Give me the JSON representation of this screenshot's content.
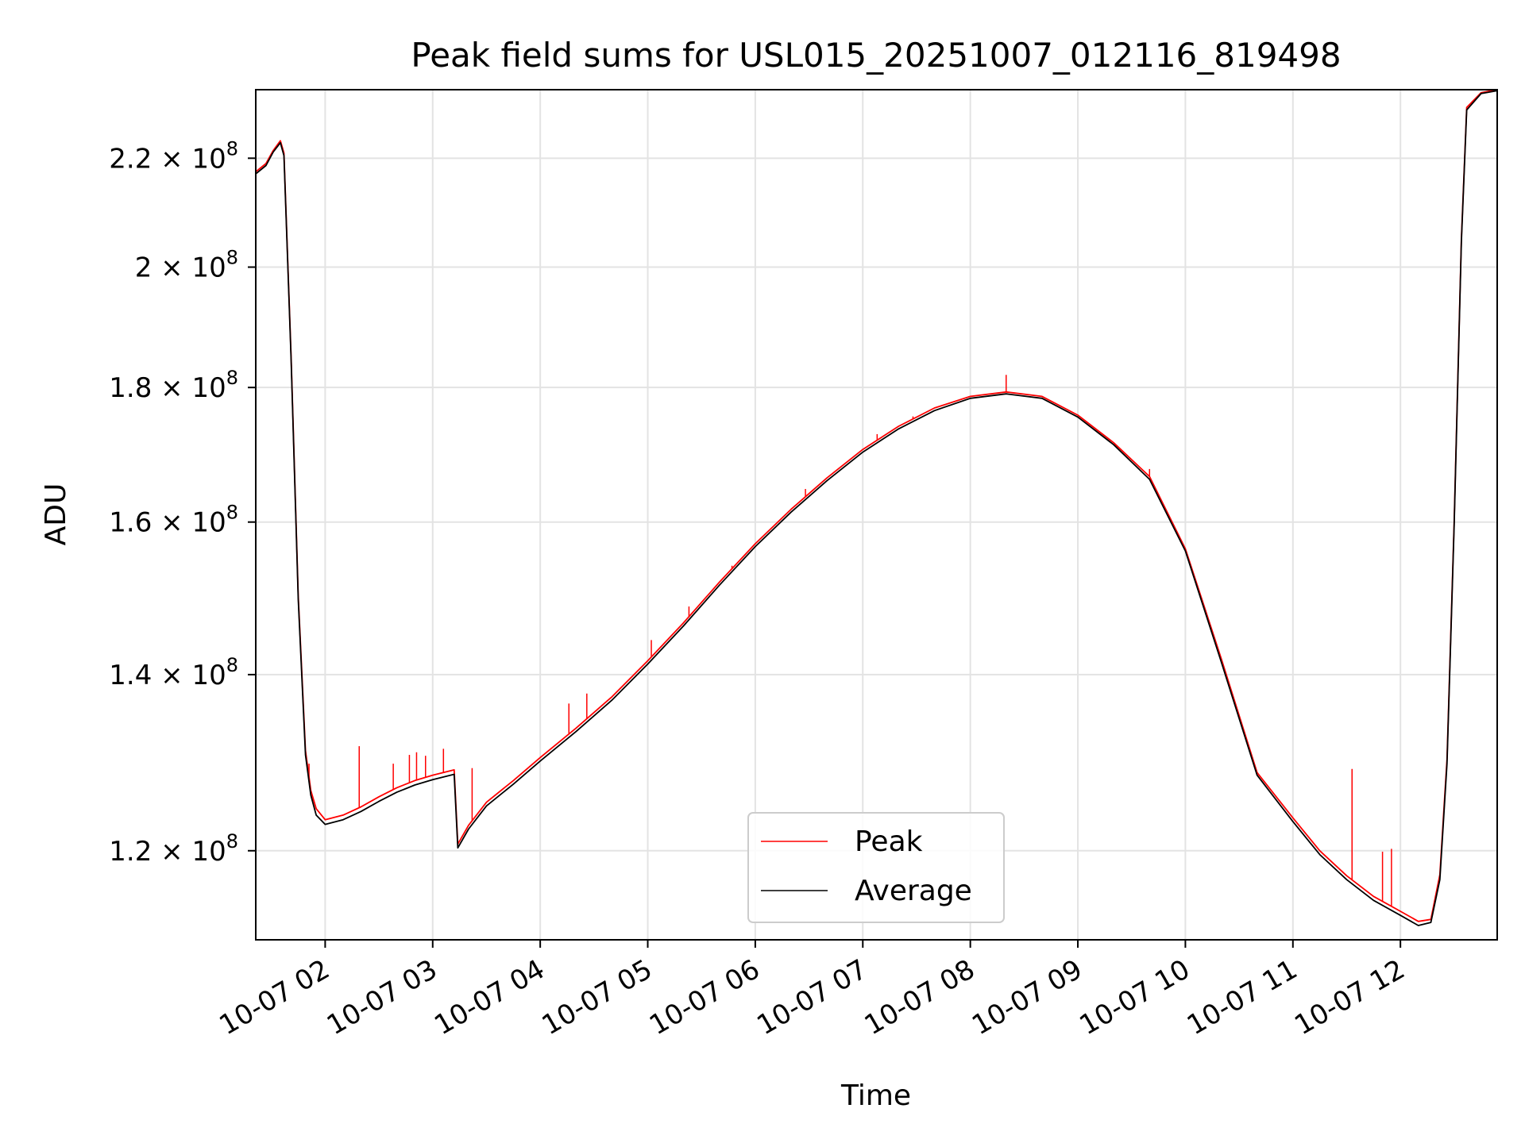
{
  "chart_data": {
    "type": "line",
    "title": "Peak field sums for USL015_20251007_012116_819498",
    "xlabel": "Time",
    "ylabel": "ADU",
    "x_axis_type": "time",
    "xlim": [
      "2025-10-07T01:21:16",
      "2025-10-07T12:54:00"
    ],
    "ylim": [
      111000000,
      233600000
    ],
    "yscale": "log",
    "grid": true,
    "legend_position": "lower-center",
    "x_ticks": [
      {
        "value": "2025-10-07T02:00:00",
        "label": "10-07 02"
      },
      {
        "value": "2025-10-07T03:00:00",
        "label": "10-07 03"
      },
      {
        "value": "2025-10-07T04:00:00",
        "label": "10-07 04"
      },
      {
        "value": "2025-10-07T05:00:00",
        "label": "10-07 05"
      },
      {
        "value": "2025-10-07T06:00:00",
        "label": "10-07 06"
      },
      {
        "value": "2025-10-07T07:00:00",
        "label": "10-07 07"
      },
      {
        "value": "2025-10-07T08:00:00",
        "label": "10-07 08"
      },
      {
        "value": "2025-10-07T09:00:00",
        "label": "10-07 09"
      },
      {
        "value": "2025-10-07T10:00:00",
        "label": "10-07 10"
      },
      {
        "value": "2025-10-07T11:00:00",
        "label": "10-07 11"
      },
      {
        "value": "2025-10-07T12:00:00",
        "label": "10-07 12"
      }
    ],
    "y_ticks": [
      {
        "value": 120000000,
        "mantissa": "1.2",
        "exponent": "8"
      },
      {
        "value": 140000000,
        "mantissa": "1.4",
        "exponent": "8"
      },
      {
        "value": 160000000,
        "mantissa": "1.6",
        "exponent": "8"
      },
      {
        "value": 180000000,
        "mantissa": "1.8",
        "exponent": "8"
      },
      {
        "value": 200000000,
        "mantissa": "2",
        "exponent": "8"
      },
      {
        "value": 220000000,
        "mantissa": "2.2",
        "exponent": "8"
      }
    ],
    "series": [
      {
        "name": "Peak",
        "color": "#ff0000",
        "points": [
          [
            "2025-10-07T01:21:16",
            217400000
          ],
          [
            "2025-10-07T01:27:00",
            219000000
          ],
          [
            "2025-10-07T01:31:00",
            221500000
          ],
          [
            "2025-10-07T01:35:00",
            223400000
          ],
          [
            "2025-10-07T01:37:00",
            221000000
          ],
          [
            "2025-10-07T01:41:00",
            185000000
          ],
          [
            "2025-10-07T01:45:00",
            150000000
          ],
          [
            "2025-10-07T01:49:00",
            131000000
          ],
          [
            "2025-10-07T01:52:00",
            126500000
          ],
          [
            "2025-10-07T01:55:00",
            124500000
          ],
          [
            "2025-10-07T02:00:00",
            123300000
          ],
          [
            "2025-10-07T02:10:00",
            123800000
          ],
          [
            "2025-10-07T02:20:00",
            124700000
          ],
          [
            "2025-10-07T02:30:00",
            125800000
          ],
          [
            "2025-10-07T02:40:00",
            126800000
          ],
          [
            "2025-10-07T02:50:00",
            127600000
          ],
          [
            "2025-10-07T03:00:00",
            128200000
          ],
          [
            "2025-10-07T03:12:00",
            128800000
          ],
          [
            "2025-10-07T03:14:00",
            120700000
          ],
          [
            "2025-10-07T03:20:00",
            122700000
          ],
          [
            "2025-10-07T03:30:00",
            125200000
          ],
          [
            "2025-10-07T03:45:00",
            127600000
          ],
          [
            "2025-10-07T04:00:00",
            130200000
          ],
          [
            "2025-10-07T04:20:00",
            133600000
          ],
          [
            "2025-10-07T04:40:00",
            137300000
          ],
          [
            "2025-10-07T05:00:00",
            141700000
          ],
          [
            "2025-10-07T05:20:00",
            146500000
          ],
          [
            "2025-10-07T05:40:00",
            151800000
          ],
          [
            "2025-10-07T06:00:00",
            157000000
          ],
          [
            "2025-10-07T06:20:00",
            161800000
          ],
          [
            "2025-10-07T06:40:00",
            166300000
          ],
          [
            "2025-10-07T07:00:00",
            170500000
          ],
          [
            "2025-10-07T07:20:00",
            174000000
          ],
          [
            "2025-10-07T07:40:00",
            176800000
          ],
          [
            "2025-10-07T08:00:00",
            178600000
          ],
          [
            "2025-10-07T08:20:00",
            179300000
          ],
          [
            "2025-10-07T08:40:00",
            178600000
          ],
          [
            "2025-10-07T09:00:00",
            175700000
          ],
          [
            "2025-10-07T09:20:00",
            171500000
          ],
          [
            "2025-10-07T09:40:00",
            166500000
          ],
          [
            "2025-10-07T10:00:00",
            156300000
          ],
          [
            "2025-10-07T10:20:00",
            142000000
          ],
          [
            "2025-10-07T10:40:00",
            128500000
          ],
          [
            "2025-10-07T11:00:00",
            123500000
          ],
          [
            "2025-10-07T11:15:00",
            120000000
          ],
          [
            "2025-10-07T11:30:00",
            117400000
          ],
          [
            "2025-10-07T11:45:00",
            115300000
          ],
          [
            "2025-10-07T12:00:00",
            113800000
          ],
          [
            "2025-10-07T12:10:00",
            112800000
          ],
          [
            "2025-10-07T12:17:00",
            113000000
          ],
          [
            "2025-10-07T12:22:00",
            117500000
          ],
          [
            "2025-10-07T12:26:00",
            130000000
          ],
          [
            "2025-10-07T12:30:00",
            160000000
          ],
          [
            "2025-10-07T12:34:00",
            205000000
          ],
          [
            "2025-10-07T12:37:00",
            230000000
          ],
          [
            "2025-10-07T12:45:00",
            233000000
          ],
          [
            "2025-10-07T12:54:00",
            233600000
          ]
        ],
        "spikes": [
          [
            "2025-10-07T01:51:00",
            129500000
          ],
          [
            "2025-10-07T02:19:00",
            131500000
          ],
          [
            "2025-10-07T02:38:00",
            129500000
          ],
          [
            "2025-10-07T02:47:00",
            130500000
          ],
          [
            "2025-10-07T02:51:00",
            130800000
          ],
          [
            "2025-10-07T02:56:00",
            130400000
          ],
          [
            "2025-10-07T03:06:00",
            131200000
          ],
          [
            "2025-10-07T03:22:00",
            129000000
          ],
          [
            "2025-10-07T04:16:00",
            136500000
          ],
          [
            "2025-10-07T04:26:00",
            137700000
          ],
          [
            "2025-10-07T05:02:00",
            144300000
          ],
          [
            "2025-10-07T05:23:00",
            148600000
          ],
          [
            "2025-10-07T05:47:00",
            154000000
          ],
          [
            "2025-10-07T06:28:00",
            164700000
          ],
          [
            "2025-10-07T07:08:00",
            172800000
          ],
          [
            "2025-10-07T07:28:00",
            175500000
          ],
          [
            "2025-10-07T08:20:00",
            182000000
          ],
          [
            "2025-10-07T09:40:00",
            167600000
          ],
          [
            "2025-10-07T11:33:00",
            128900000
          ],
          [
            "2025-10-07T11:50:00",
            119900000
          ],
          [
            "2025-10-07T11:55:00",
            120200000
          ]
        ]
      },
      {
        "name": "Average",
        "color": "#000000",
        "points": [
          [
            "2025-10-07T01:21:16",
            217000000
          ],
          [
            "2025-10-07T01:27:00",
            218600000
          ],
          [
            "2025-10-07T01:31:00",
            221200000
          ],
          [
            "2025-10-07T01:35:00",
            223000000
          ],
          [
            "2025-10-07T01:37:00",
            220500000
          ],
          [
            "2025-10-07T01:41:00",
            184500000
          ],
          [
            "2025-10-07T01:45:00",
            149500000
          ],
          [
            "2025-10-07T01:49:00",
            130500000
          ],
          [
            "2025-10-07T01:52:00",
            126000000
          ],
          [
            "2025-10-07T01:55:00",
            123800000
          ],
          [
            "2025-10-07T02:00:00",
            122800000
          ],
          [
            "2025-10-07T02:10:00",
            123300000
          ],
          [
            "2025-10-07T02:20:00",
            124200000
          ],
          [
            "2025-10-07T02:30:00",
            125300000
          ],
          [
            "2025-10-07T02:40:00",
            126300000
          ],
          [
            "2025-10-07T02:50:00",
            127100000
          ],
          [
            "2025-10-07T03:00:00",
            127700000
          ],
          [
            "2025-10-07T03:12:00",
            128300000
          ],
          [
            "2025-10-07T03:14:00",
            120300000
          ],
          [
            "2025-10-07T03:20:00",
            122300000
          ],
          [
            "2025-10-07T03:30:00",
            124800000
          ],
          [
            "2025-10-07T03:45:00",
            127200000
          ],
          [
            "2025-10-07T04:00:00",
            129800000
          ],
          [
            "2025-10-07T04:20:00",
            133200000
          ],
          [
            "2025-10-07T04:40:00",
            136900000
          ],
          [
            "2025-10-07T05:00:00",
            141300000
          ],
          [
            "2025-10-07T05:20:00",
            146100000
          ],
          [
            "2025-10-07T05:40:00",
            151400000
          ],
          [
            "2025-10-07T06:00:00",
            156600000
          ],
          [
            "2025-10-07T06:20:00",
            161400000
          ],
          [
            "2025-10-07T06:40:00",
            165900000
          ],
          [
            "2025-10-07T07:00:00",
            170100000
          ],
          [
            "2025-10-07T07:20:00",
            173600000
          ],
          [
            "2025-10-07T07:40:00",
            176400000
          ],
          [
            "2025-10-07T08:00:00",
            178300000
          ],
          [
            "2025-10-07T08:20:00",
            179000000
          ],
          [
            "2025-10-07T08:40:00",
            178300000
          ],
          [
            "2025-10-07T09:00:00",
            175400000
          ],
          [
            "2025-10-07T09:20:00",
            171200000
          ],
          [
            "2025-10-07T09:40:00",
            166100000
          ],
          [
            "2025-10-07T10:00:00",
            156000000
          ],
          [
            "2025-10-07T10:20:00",
            141600000
          ],
          [
            "2025-10-07T10:40:00",
            128200000
          ],
          [
            "2025-10-07T11:00:00",
            123100000
          ],
          [
            "2025-10-07T11:15:00",
            119600000
          ],
          [
            "2025-10-07T11:30:00",
            117000000
          ],
          [
            "2025-10-07T11:45:00",
            114900000
          ],
          [
            "2025-10-07T12:00:00",
            113400000
          ],
          [
            "2025-10-07T12:10:00",
            112400000
          ],
          [
            "2025-10-07T12:17:00",
            112700000
          ],
          [
            "2025-10-07T12:22:00",
            117000000
          ],
          [
            "2025-10-07T12:26:00",
            129500000
          ],
          [
            "2025-10-07T12:30:00",
            159500000
          ],
          [
            "2025-10-07T12:34:00",
            204500000
          ],
          [
            "2025-10-07T12:37:00",
            229500000
          ],
          [
            "2025-10-07T12:45:00",
            232800000
          ],
          [
            "2025-10-07T12:54:00",
            233400000
          ]
        ]
      }
    ],
    "legend": [
      "Peak",
      "Average"
    ]
  }
}
